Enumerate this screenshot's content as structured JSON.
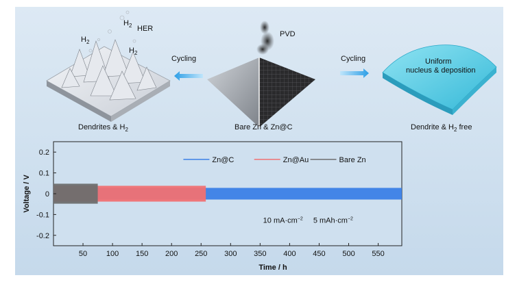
{
  "schematic": {
    "left_caption_main": "Dendrites & H",
    "left_caption_sub": "2",
    "left_labels": {
      "h2_a_main": "H",
      "h2_a_sub": "2",
      "h2_b_main": "H",
      "h2_b_sub": "2",
      "h2_c_main": "H",
      "h2_c_sub": "2",
      "her": "HER"
    },
    "left_arrow_label": "Cycling",
    "center_caption": "Bare Zn & Zn@C",
    "pvd_label": "PVD",
    "right_arrow_label": "Cycling",
    "right_tile_text_line1": "Uniform",
    "right_tile_text_line2": "nucleus & deposition",
    "right_caption_main": "Dendrite & H",
    "right_caption_sub": "2",
    "right_caption_tail": " free",
    "colors": {
      "arrow": "#3aa8e6",
      "deposit": "#4cc6e0"
    }
  },
  "chart_data": {
    "type": "line",
    "xlabel": "Time / h",
    "ylabel": "Voltage / V",
    "xlim": [
      0,
      590
    ],
    "ylim": [
      -0.25,
      0.25
    ],
    "xticks": [
      50,
      100,
      150,
      200,
      250,
      300,
      350,
      400,
      450,
      500,
      550
    ],
    "yticks": [
      0.2,
      0.1,
      0,
      -0.1,
      -0.2
    ],
    "ytick_labels": [
      "0.2",
      "0.1",
      "0",
      "-0.1",
      "-0.2"
    ],
    "series": [
      {
        "name": "Zn@C",
        "color": "#3b7fe6",
        "t_end": 590,
        "amplitude": 0.028
      },
      {
        "name": "Zn@Au",
        "color": "#f07173",
        "t_end": 258,
        "amplitude": 0.038
      },
      {
        "name": "Bare Zn",
        "color": "#6e6e6e",
        "t_end": 75,
        "amplitude": 0.048
      }
    ],
    "annotations": [
      {
        "text": "10 mA·cm",
        "sup": "−2"
      },
      {
        "text": "5 mAh·cm",
        "sup": "−2"
      }
    ],
    "legend_position": "top-right"
  }
}
